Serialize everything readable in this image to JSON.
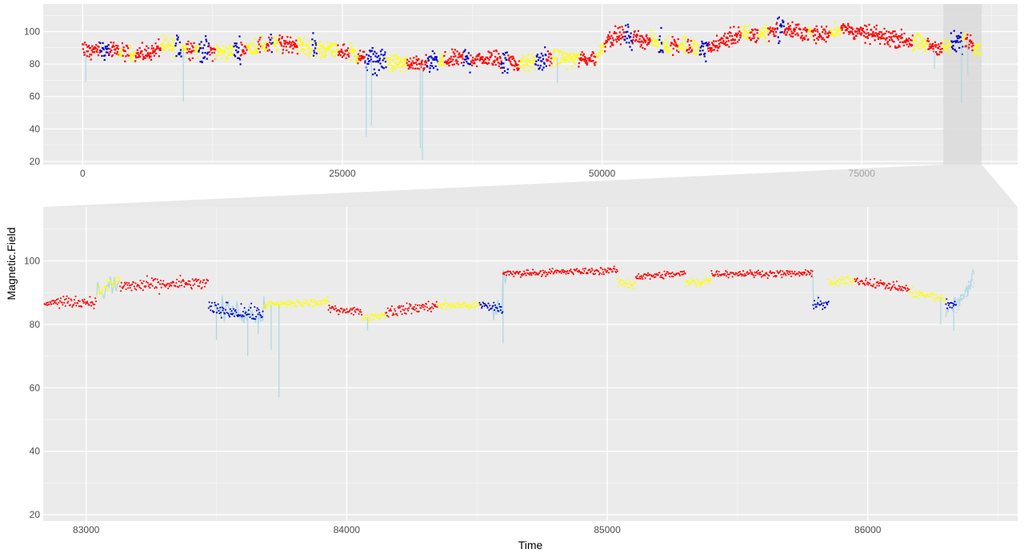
{
  "colors": {
    "panel_bg": "#ebebeb",
    "grid_major": "#ffffff",
    "highlight": "#d9d9d9",
    "state_red": "#ff0000",
    "state_yellow": "#ffff00",
    "state_blue": "#0000cd",
    "state_lightblue": "#add8e6"
  },
  "chart_data": [
    {
      "id": "overview",
      "type": "scatter",
      "xlabel": "",
      "ylabel": "",
      "xlim": [
        -3800,
        90000
      ],
      "ylim": [
        18,
        117
      ],
      "x_ticks": [
        0,
        25000,
        50000,
        75000
      ],
      "x_tick_labels": [
        "0",
        "25000",
        "50000",
        "75000"
      ],
      "y_ticks": [
        20,
        40,
        60,
        80,
        100
      ],
      "y_tick_labels": [
        "20",
        "40",
        "60",
        "80",
        "100"
      ],
      "grid": true,
      "legend": "none",
      "zoom_window": [
        82850,
        86550
      ],
      "baseline": [
        [
          0,
          88
        ],
        [
          2000,
          89
        ],
        [
          4000,
          87
        ],
        [
          6000,
          86
        ],
        [
          8000,
          91
        ],
        [
          10000,
          90
        ],
        [
          12000,
          88
        ],
        [
          14000,
          87
        ],
        [
          16000,
          90
        ],
        [
          18000,
          92
        ],
        [
          20000,
          93
        ],
        [
          22000,
          90
        ],
        [
          24000,
          89
        ],
        [
          26000,
          87
        ],
        [
          27000,
          83
        ],
        [
          30000,
          81
        ],
        [
          32000,
          79
        ],
        [
          34000,
          81
        ],
        [
          36000,
          83
        ],
        [
          38000,
          83
        ],
        [
          40000,
          83
        ],
        [
          42000,
          80
        ],
        [
          44000,
          82
        ],
        [
          46000,
          84
        ],
        [
          48000,
          83
        ],
        [
          49500,
          84
        ],
        [
          50500,
          96
        ],
        [
          52000,
          98
        ],
        [
          54000,
          95
        ],
        [
          56000,
          92
        ],
        [
          58000,
          92
        ],
        [
          59500,
          88
        ],
        [
          61000,
          92
        ],
        [
          63000,
          98
        ],
        [
          65000,
          98
        ],
        [
          67000,
          102
        ],
        [
          69000,
          100
        ],
        [
          71000,
          98
        ],
        [
          73000,
          102
        ],
        [
          75000,
          99
        ],
        [
          77000,
          97
        ],
        [
          79000,
          95
        ],
        [
          81000,
          92
        ],
        [
          83000,
          90
        ],
        [
          85000,
          95
        ],
        [
          86500,
          90
        ]
      ],
      "spikes": [
        [
          300,
          69
        ],
        [
          9700,
          57
        ],
        [
          27300,
          35
        ],
        [
          27800,
          42
        ],
        [
          32500,
          28
        ],
        [
          32700,
          21
        ],
        [
          45700,
          68
        ],
        [
          82000,
          77
        ],
        [
          84600,
          56
        ],
        [
          85200,
          73
        ]
      ],
      "spread": 4.5
    },
    {
      "id": "detail",
      "type": "scatter",
      "xlabel": "Time",
      "ylabel": "Magnetic.Field",
      "xlim": [
        82835,
        86575
      ],
      "ylim": [
        18,
        117
      ],
      "x_ticks": [
        83000,
        84000,
        85000,
        86000
      ],
      "x_tick_labels": [
        "83000",
        "84000",
        "85000",
        "86000"
      ],
      "y_ticks": [
        20,
        40,
        60,
        80,
        100
      ],
      "y_tick_labels": [
        "20",
        "40",
        "60",
        "80",
        "100"
      ],
      "grid": true,
      "legend": "none",
      "segments": [
        {
          "color": "red",
          "start": 82840,
          "end": 83040,
          "y0": 87,
          "y1": 87,
          "noise": 1.4
        },
        {
          "color": "yellow",
          "start": 83040,
          "end": 83130,
          "y0": 90,
          "y1": 94,
          "noise": 2.0
        },
        {
          "color": "red",
          "start": 83130,
          "end": 83470,
          "y0": 92,
          "y1": 93,
          "noise": 1.8
        },
        {
          "color": "blue",
          "start": 83470,
          "end": 83680,
          "y0": 85,
          "y1": 83,
          "noise": 2.0
        },
        {
          "color": "yellow",
          "start": 83680,
          "end": 83930,
          "y0": 86,
          "y1": 87,
          "noise": 1.2
        },
        {
          "color": "red",
          "start": 83930,
          "end": 84060,
          "y0": 85,
          "y1": 84,
          "noise": 1.0
        },
        {
          "color": "yellow",
          "start": 84060,
          "end": 84150,
          "y0": 82,
          "y1": 83,
          "noise": 1.0
        },
        {
          "color": "red",
          "start": 84150,
          "end": 84350,
          "y0": 84,
          "y1": 86,
          "noise": 1.5
        },
        {
          "color": "yellow",
          "start": 84350,
          "end": 84510,
          "y0": 86,
          "y1": 86,
          "noise": 1.2
        },
        {
          "color": "blue",
          "start": 84510,
          "end": 84600,
          "y0": 86,
          "y1": 85,
          "noise": 1.5
        },
        {
          "color": "red",
          "start": 84600,
          "end": 85040,
          "y0": 96,
          "y1": 97,
          "noise": 0.9
        },
        {
          "color": "yellow",
          "start": 85040,
          "end": 85110,
          "y0": 93,
          "y1": 93,
          "noise": 1.5
        },
        {
          "color": "red",
          "start": 85110,
          "end": 85300,
          "y0": 95,
          "y1": 96,
          "noise": 1.0
        },
        {
          "color": "yellow",
          "start": 85300,
          "end": 85400,
          "y0": 93,
          "y1": 94,
          "noise": 1.5
        },
        {
          "color": "red",
          "start": 85400,
          "end": 85790,
          "y0": 96,
          "y1": 96,
          "noise": 0.9
        },
        {
          "color": "blue",
          "start": 85790,
          "end": 85850,
          "y0": 87,
          "y1": 86,
          "noise": 1.5
        },
        {
          "color": "yellow",
          "start": 85850,
          "end": 85950,
          "y0": 93,
          "y1": 94,
          "noise": 1.2
        },
        {
          "color": "red",
          "start": 85950,
          "end": 86160,
          "y0": 94,
          "y1": 91,
          "noise": 1.2
        },
        {
          "color": "yellow",
          "start": 86160,
          "end": 86300,
          "y0": 90,
          "y1": 88,
          "noise": 1.2
        },
        {
          "color": "blue",
          "start": 86300,
          "end": 86340,
          "y0": 86,
          "y1": 86,
          "noise": 1.5
        },
        {
          "color": "lightblue",
          "start": 86340,
          "end": 86410,
          "y0": 85,
          "y1": 95,
          "noise": 2.0
        }
      ],
      "dips": [
        [
          83500,
          75
        ],
        [
          83620,
          70
        ],
        [
          83660,
          77
        ],
        [
          83710,
          72
        ],
        [
          83740,
          57
        ],
        [
          84080,
          78
        ],
        [
          84600,
          74
        ],
        [
          86280,
          80
        ],
        [
          86330,
          78
        ]
      ],
      "lightblue_runs": [
        [
          83040,
          83130
        ],
        [
          83490,
          83690
        ],
        [
          84560,
          84620
        ],
        [
          85780,
          85810
        ],
        [
          86300,
          86410
        ]
      ]
    }
  ]
}
